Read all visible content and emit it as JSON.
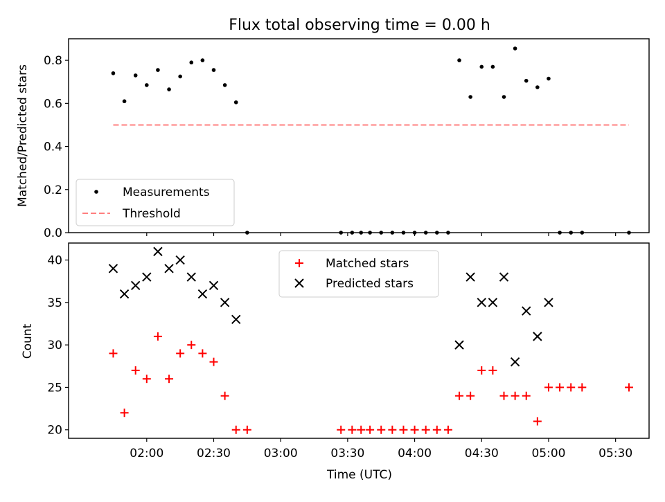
{
  "title": "Flux total observing time = 0.00 h",
  "colors": {
    "measurement": "#000000",
    "threshold": "#ff7f7f",
    "matched": "#ff0000",
    "predicted": "#000000",
    "axes": "#000000"
  },
  "chart_data": [
    {
      "type": "scatter",
      "panel": "top",
      "title": "Flux total observing time = 0.00 h",
      "xlabel": "",
      "ylabel": "Matched/Predicted stars",
      "xlim_minutes": [
        85,
        345
      ],
      "ylim": [
        0,
        0.9
      ],
      "yticks": [
        0.0,
        0.2,
        0.4,
        0.6,
        0.8
      ],
      "ytick_labels": [
        "0.0",
        "0.2",
        "0.4",
        "0.6",
        "0.8"
      ],
      "xticks_minutes": [
        120,
        150,
        180,
        210,
        240,
        270,
        300,
        330
      ],
      "series": [
        {
          "name": "Measurements",
          "x_minutes": [
            105,
            110,
            115,
            120,
            125,
            130,
            135,
            140,
            145,
            150,
            155,
            160,
            165,
            207,
            212,
            216,
            220,
            225,
            230,
            235,
            240,
            245,
            250,
            255,
            260,
            265,
            270,
            275,
            280,
            285,
            290,
            295,
            300,
            305,
            310,
            315,
            336
          ],
          "x_labels": [
            "01:45",
            "01:50",
            "01:55",
            "02:00",
            "02:05",
            "02:10",
            "02:15",
            "02:20",
            "02:25",
            "02:30",
            "02:35",
            "02:40",
            "02:45",
            "03:27",
            "03:32",
            "03:36",
            "03:40",
            "03:45",
            "03:50",
            "03:55",
            "04:00",
            "04:05",
            "04:10",
            "04:15",
            "04:20",
            "04:25",
            "04:30",
            "04:35",
            "04:40",
            "04:45",
            "04:50",
            "04:55",
            "05:00",
            "05:05",
            "05:10",
            "05:15",
            "05:36"
          ],
          "y": [
            0.74,
            0.61,
            0.73,
            0.685,
            0.755,
            0.665,
            0.725,
            0.79,
            0.8,
            0.755,
            0.685,
            0.605,
            0.0,
            0.0,
            0.0,
            0.0,
            0.0,
            0.0,
            0.0,
            0.0,
            0.0,
            0.0,
            0.0,
            0.0,
            0.8,
            0.63,
            0.77,
            0.77,
            0.63,
            0.855,
            0.705,
            0.675,
            0.715,
            0.0,
            0.0,
            0.0,
            0.0
          ]
        },
        {
          "name": "Threshold",
          "x_minutes": [
            105,
            336
          ],
          "y": [
            0.5,
            0.5
          ]
        }
      ],
      "legend": {
        "position": "lower-left",
        "entries": [
          "Measurements",
          "Threshold"
        ]
      }
    },
    {
      "type": "scatter",
      "panel": "bottom",
      "xlabel": "Time (UTC)",
      "ylabel": "Count",
      "xlim_minutes": [
        85,
        345
      ],
      "ylim": [
        19,
        42
      ],
      "yticks": [
        20,
        25,
        30,
        35,
        40
      ],
      "ytick_labels": [
        "20",
        "25",
        "30",
        "35",
        "40"
      ],
      "xticks_minutes": [
        120,
        150,
        180,
        210,
        240,
        270,
        300,
        330
      ],
      "xtick_labels": [
        "02:00",
        "02:30",
        "03:00",
        "03:30",
        "04:00",
        "04:30",
        "05:00",
        "05:30"
      ],
      "series": [
        {
          "name": "Matched stars",
          "x_minutes": [
            105,
            110,
            115,
            120,
            125,
            130,
            135,
            140,
            145,
            150,
            155,
            160,
            165,
            207,
            212,
            216,
            220,
            225,
            230,
            235,
            240,
            245,
            250,
            255,
            260,
            265,
            270,
            275,
            280,
            285,
            290,
            295,
            300,
            305,
            310,
            315,
            336
          ],
          "y": [
            29,
            22,
            27,
            26,
            31,
            26,
            29,
            30,
            29,
            28,
            24,
            20,
            20,
            20,
            20,
            20,
            20,
            20,
            20,
            20,
            20,
            20,
            20,
            20,
            24,
            24,
            27,
            27,
            24,
            24,
            24,
            21,
            25,
            25,
            25,
            25,
            25
          ]
        },
        {
          "name": "Predicted stars",
          "x_minutes": [
            105,
            110,
            115,
            120,
            125,
            130,
            135,
            140,
            145,
            150,
            155,
            160,
            260,
            265,
            270,
            275,
            280,
            285,
            290,
            295,
            300
          ],
          "y": [
            39,
            36,
            37,
            38,
            41,
            39,
            40,
            38,
            36,
            37,
            35,
            33,
            30,
            38,
            35,
            35,
            38,
            28,
            34,
            31,
            35
          ]
        }
      ],
      "legend": {
        "position": "upper-center",
        "entries": [
          "Matched stars",
          "Predicted stars"
        ]
      }
    }
  ]
}
